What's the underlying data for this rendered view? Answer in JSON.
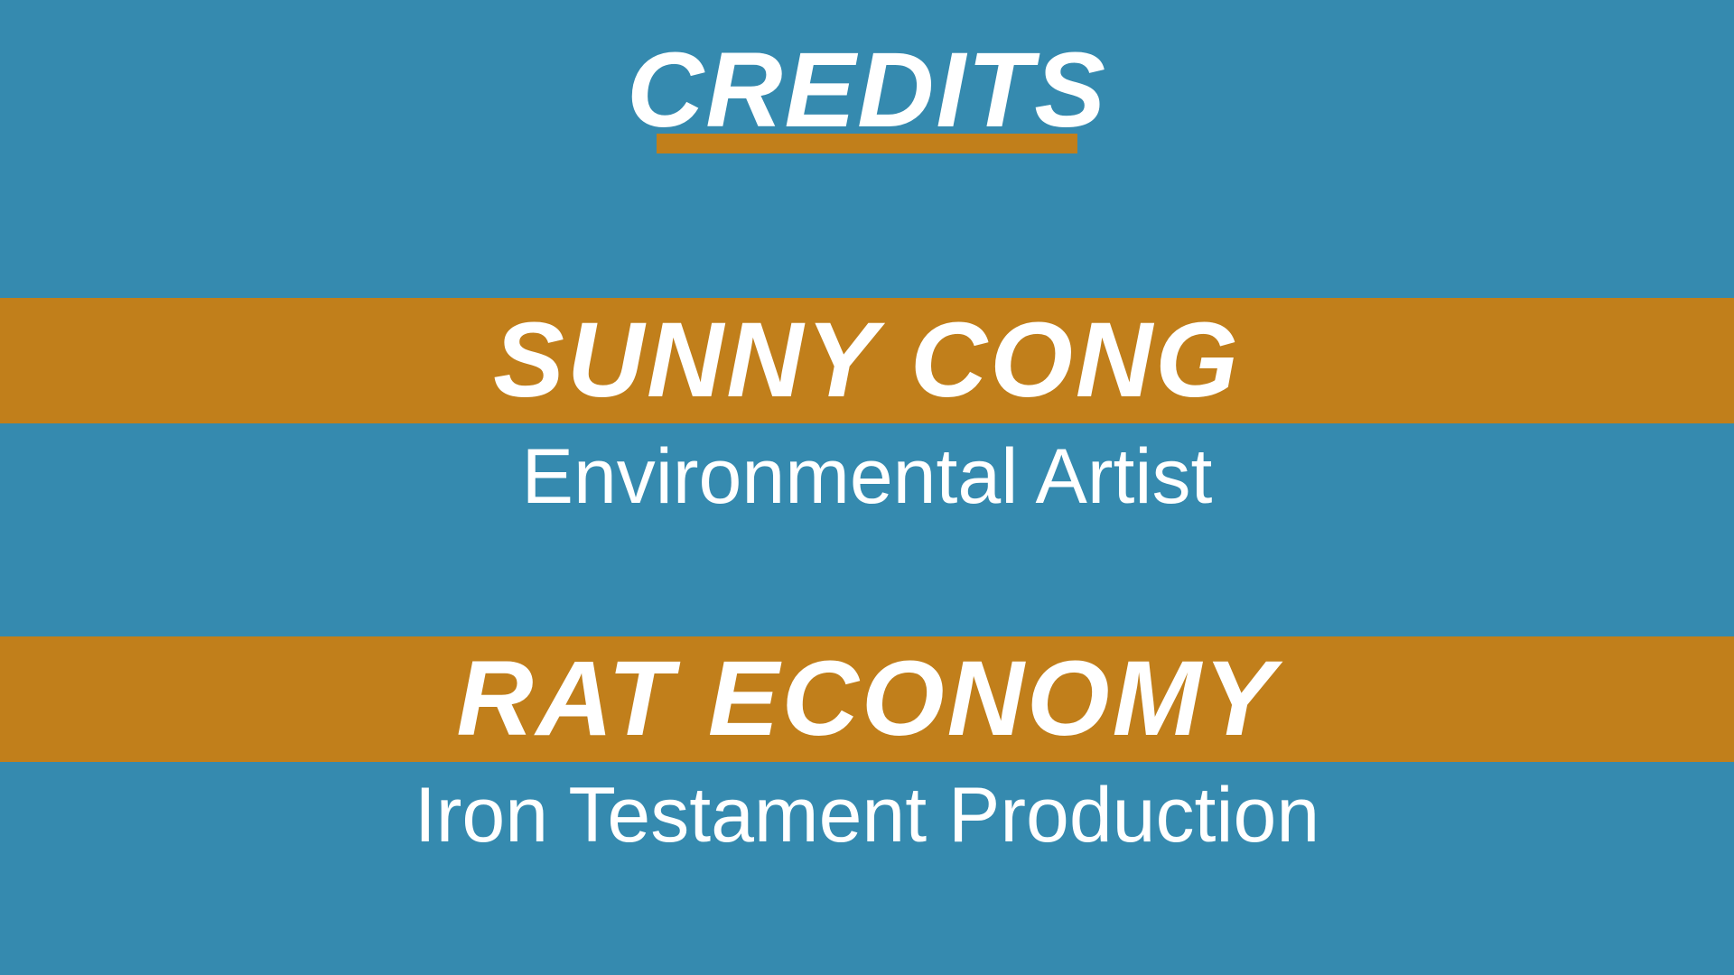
{
  "colors": {
    "background": "#358aaf",
    "accent": "#c17f1b",
    "text": "#ffffff"
  },
  "title": "CREDITS",
  "credits": [
    {
      "name": "SUNNY CONG",
      "role": "Environmental Artist"
    },
    {
      "name": "RAT ECONOMY",
      "role": "Iron Testament Production"
    }
  ]
}
